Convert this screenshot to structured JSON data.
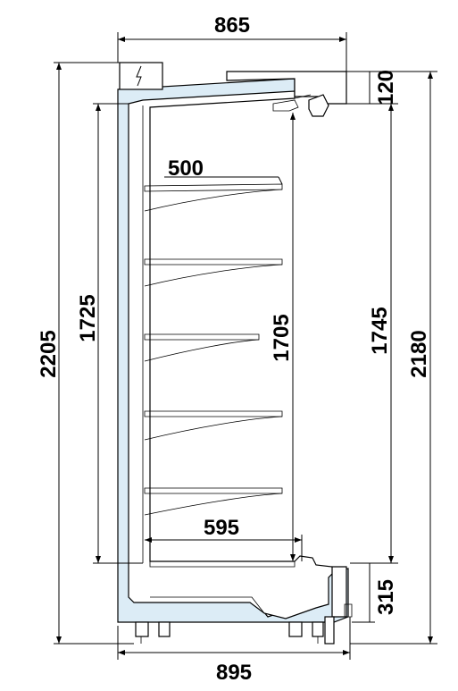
{
  "diagram": {
    "dimensions": {
      "top_width": "865",
      "bottom_width": "895",
      "total_height": "2205",
      "inner_height_left": "1725",
      "shelf_span": "1705",
      "opening_height": "1745",
      "overall_height_right": "2180",
      "canopy_height": "120",
      "base_height": "315",
      "shelf_depth": "500",
      "base_deck_depth": "595"
    },
    "colors": {
      "insulation": "#dcecf6",
      "line": "#000000",
      "background": "#ffffff"
    },
    "icons": {
      "electrical_box": "lightning-icon"
    }
  }
}
